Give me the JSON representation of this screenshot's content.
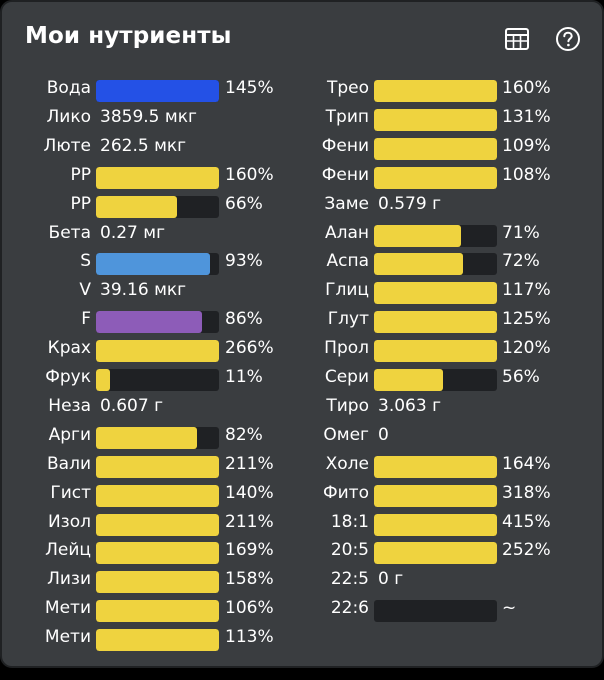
{
  "header": {
    "title": "Мои нутриенты",
    "icons": [
      "table-icon",
      "help-icon"
    ]
  },
  "colors": {
    "yellow": "#efd33f",
    "blue": "#2451e6",
    "light_blue": "#4f95db",
    "purple": "#8d5cb8",
    "track": "#1f2124",
    "panel": "#3a3d40"
  },
  "left_column": [
    {
      "label": "Вода",
      "type": "bar",
      "level": 1.0,
      "color": "blue",
      "text": "145%"
    },
    {
      "label": "Лико",
      "type": "value",
      "text": "3859.5 мкг"
    },
    {
      "label": "Люте",
      "type": "value",
      "text": "262.5 мкг"
    },
    {
      "label": "РР",
      "type": "bar",
      "level": 1.0,
      "color": "yellow",
      "text": "160%"
    },
    {
      "label": "РР",
      "type": "bar",
      "level": 0.66,
      "color": "yellow",
      "text": "66%"
    },
    {
      "label": "Бета",
      "type": "value",
      "text": "0.27 мг"
    },
    {
      "label": "S",
      "type": "bar",
      "level": 0.93,
      "color": "light_blue",
      "text": "93%"
    },
    {
      "label": "V",
      "type": "value",
      "text": "39.16 мкг"
    },
    {
      "label": "F",
      "type": "bar",
      "level": 0.86,
      "color": "purple",
      "text": "86%"
    },
    {
      "label": "Крах",
      "type": "bar",
      "level": 1.0,
      "color": "yellow",
      "text": "266%"
    },
    {
      "label": "Фрук",
      "type": "bar",
      "level": 0.11,
      "color": "yellow",
      "text": "11%"
    },
    {
      "label": "Неза",
      "type": "value",
      "text": "0.607 г"
    },
    {
      "label": "Арги",
      "type": "bar",
      "level": 0.82,
      "color": "yellow",
      "text": "82%"
    },
    {
      "label": "Вали",
      "type": "bar",
      "level": 1.0,
      "color": "yellow",
      "text": "211%"
    },
    {
      "label": "Гист",
      "type": "bar",
      "level": 1.0,
      "color": "yellow",
      "text": "140%"
    },
    {
      "label": "Изол",
      "type": "bar",
      "level": 1.0,
      "color": "yellow",
      "text": "211%"
    },
    {
      "label": "Лейц",
      "type": "bar",
      "level": 1.0,
      "color": "yellow",
      "text": "169%"
    },
    {
      "label": "Лизи",
      "type": "bar",
      "level": 1.0,
      "color": "yellow",
      "text": "158%"
    },
    {
      "label": "Мети",
      "type": "bar",
      "level": 1.0,
      "color": "yellow",
      "text": "106%"
    },
    {
      "label": "Мети",
      "type": "bar",
      "level": 1.0,
      "color": "yellow",
      "text": "113%"
    }
  ],
  "right_column": [
    {
      "label": "Трео",
      "type": "bar",
      "level": 1.0,
      "color": "yellow",
      "text": "160%"
    },
    {
      "label": "Трип",
      "type": "bar",
      "level": 1.0,
      "color": "yellow",
      "text": "131%"
    },
    {
      "label": "Фени",
      "type": "bar",
      "level": 1.0,
      "color": "yellow",
      "text": "109%"
    },
    {
      "label": "Фени",
      "type": "bar",
      "level": 1.0,
      "color": "yellow",
      "text": "108%"
    },
    {
      "label": "Заме",
      "type": "value",
      "text": "0.579 г"
    },
    {
      "label": "Алан",
      "type": "bar",
      "level": 0.71,
      "color": "yellow",
      "text": "71%"
    },
    {
      "label": "Аспа",
      "type": "bar",
      "level": 0.72,
      "color": "yellow",
      "text": "72%"
    },
    {
      "label": "Глиц",
      "type": "bar",
      "level": 1.0,
      "color": "yellow",
      "text": "117%"
    },
    {
      "label": "Глут",
      "type": "bar",
      "level": 1.0,
      "color": "yellow",
      "text": "125%"
    },
    {
      "label": "Прол",
      "type": "bar",
      "level": 1.0,
      "color": "yellow",
      "text": "120%"
    },
    {
      "label": "Сери",
      "type": "bar",
      "level": 0.56,
      "color": "yellow",
      "text": "56%"
    },
    {
      "label": "Тиро",
      "type": "value",
      "text": "3.063 г"
    },
    {
      "label": "Омег",
      "type": "value",
      "text": "0"
    },
    {
      "label": "Холе",
      "type": "bar",
      "level": 1.0,
      "color": "yellow",
      "text": "164%"
    },
    {
      "label": "Фито",
      "type": "bar",
      "level": 1.0,
      "color": "yellow",
      "text": "318%"
    },
    {
      "label": "18:1",
      "type": "bar",
      "level": 1.0,
      "color": "yellow",
      "text": "415%"
    },
    {
      "label": "20:5",
      "type": "bar",
      "level": 1.0,
      "color": "yellow",
      "text": "252%"
    },
    {
      "label": "22:5",
      "type": "value",
      "text": "0 г"
    },
    {
      "label": "22:6",
      "type": "bar",
      "level": 0.0,
      "color": "yellow",
      "text": "~"
    }
  ]
}
